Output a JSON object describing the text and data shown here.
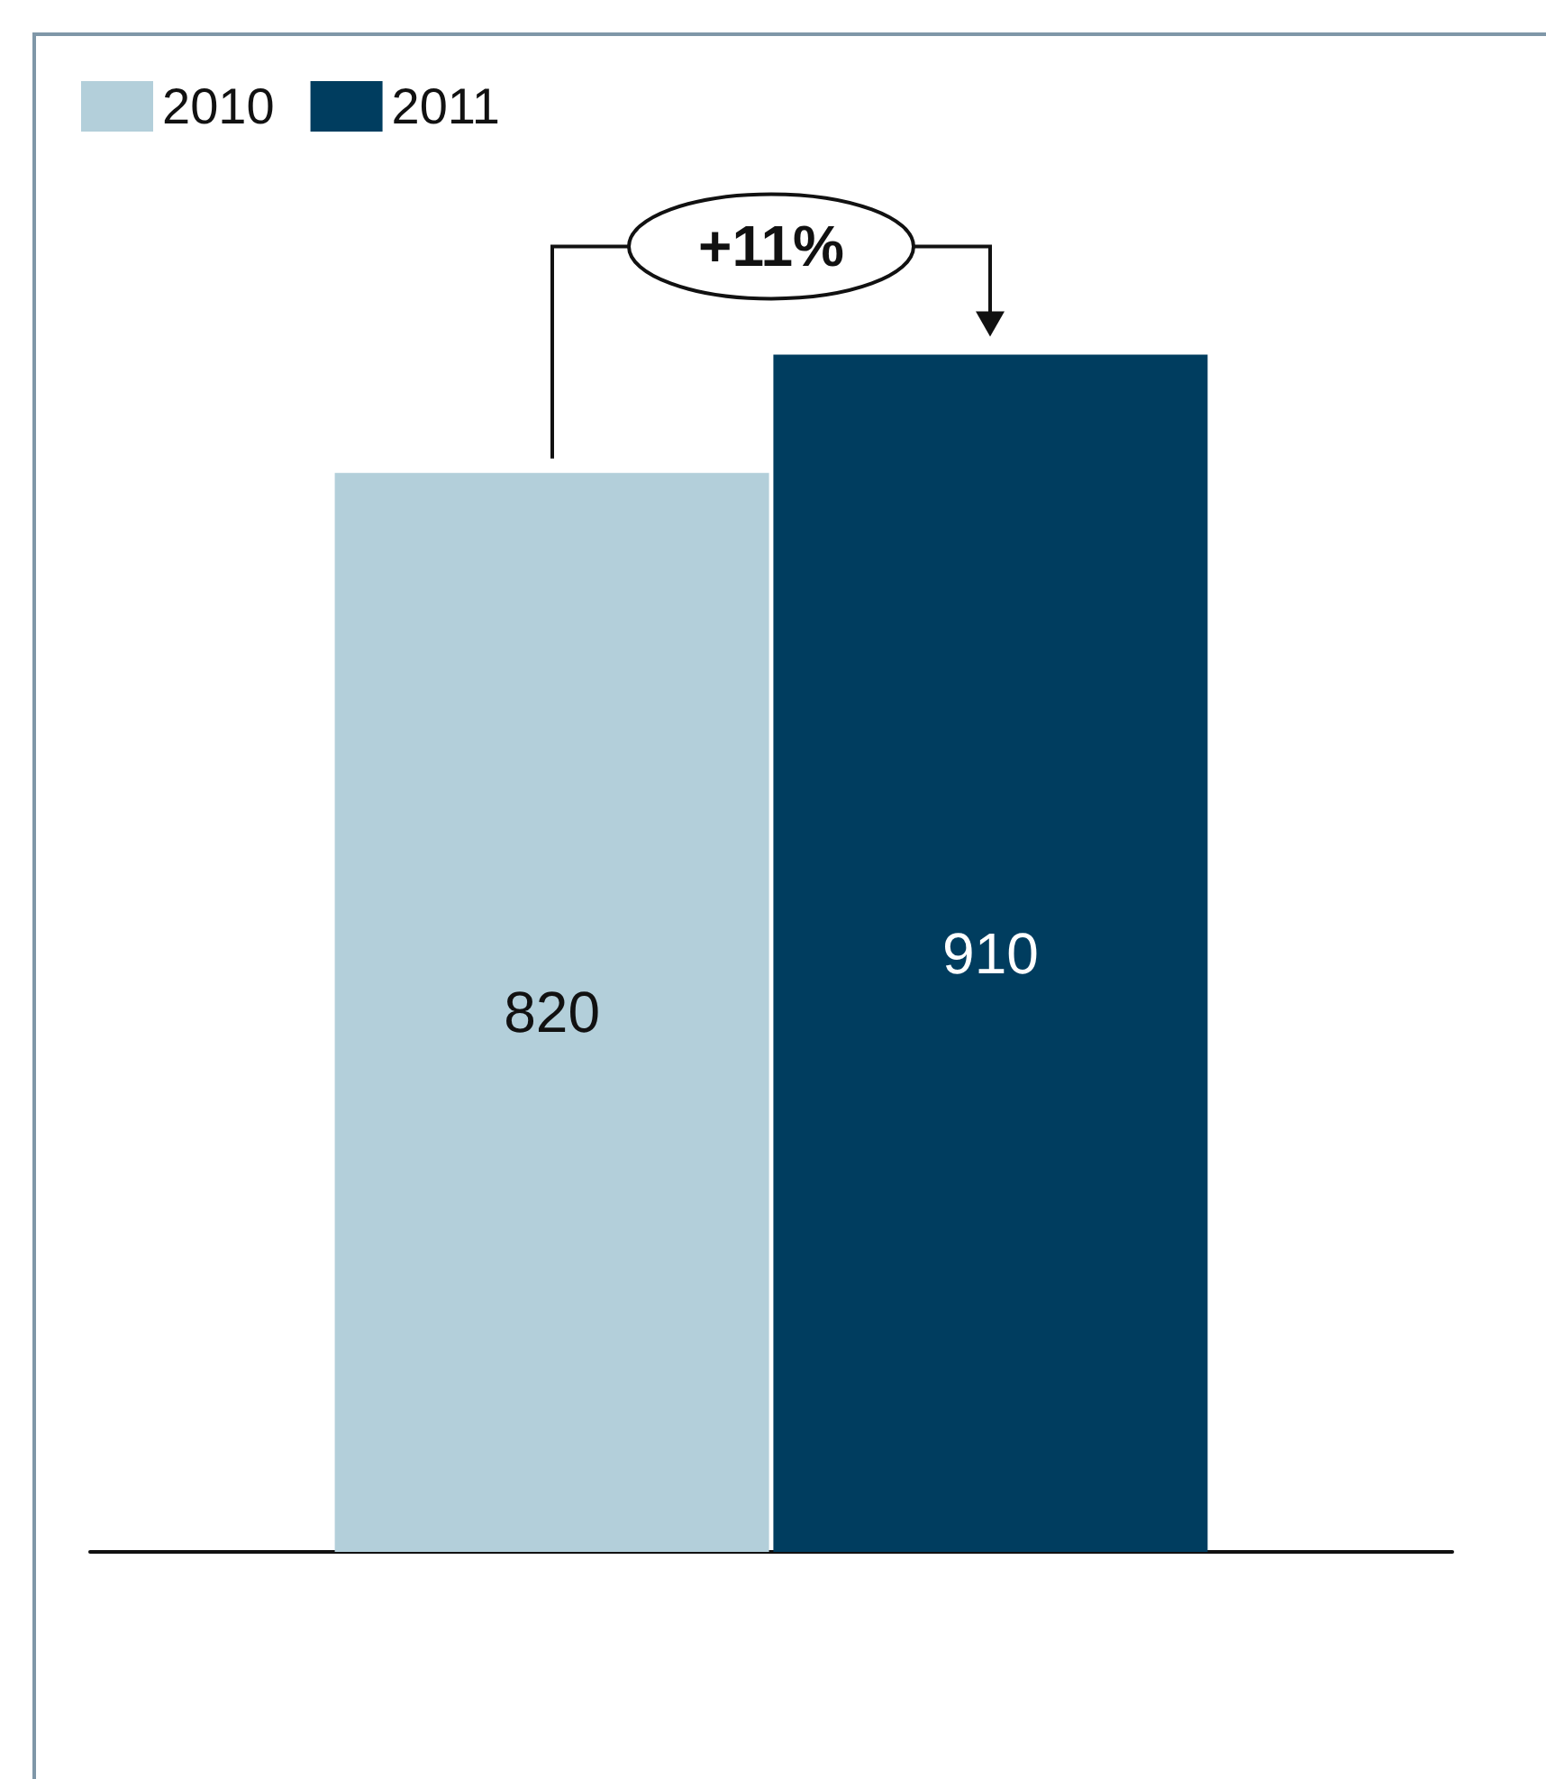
{
  "chart_data": {
    "type": "bar",
    "categories": [
      null
    ],
    "series": [
      {
        "name": "2010",
        "color": "#b3cfda",
        "values": [
          820
        ]
      },
      {
        "name": "2011",
        "color": "#003d5f",
        "values": [
          910
        ]
      }
    ],
    "data_labels": true,
    "legend": "top left",
    "grid": false,
    "annotations": [
      "+11%"
    ]
  }
}
